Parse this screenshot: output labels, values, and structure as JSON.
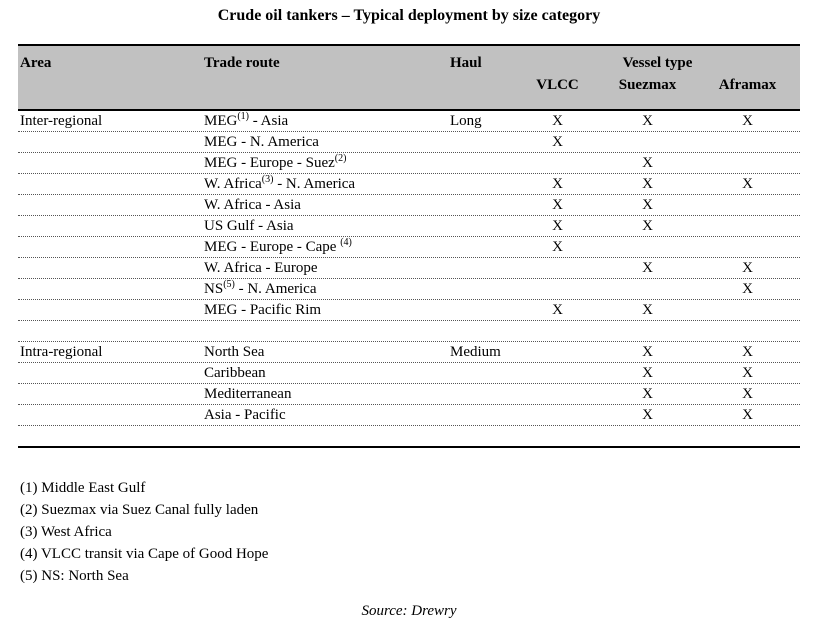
{
  "title": "Crude oil tankers – Typical deployment by size category",
  "colors": {
    "header_background": "#c1c1c1",
    "rule": "#000000",
    "dotted_rule": "#555555"
  },
  "table": {
    "headers": {
      "area": "Area",
      "trade_route": "Trade route",
      "haul": "Haul",
      "vessel_type": "Vessel type",
      "vlcc": "VLCC",
      "suezmax": "Suezmax",
      "aframax": "Aframax"
    },
    "mark": "X",
    "rows": [
      {
        "area": "Inter-regional",
        "route_pre": "MEG",
        "route_sup": "(1)",
        "route_post": " - Asia",
        "haul": "Long",
        "vlcc": true,
        "suezmax": true,
        "aframax": true
      },
      {
        "area": "",
        "route_pre": "MEG - N. America",
        "route_sup": "",
        "route_post": "",
        "haul": "",
        "vlcc": true,
        "suezmax": false,
        "aframax": false
      },
      {
        "area": "",
        "route_pre": "MEG - Europe - Suez",
        "route_sup": "(2)",
        "route_post": "",
        "haul": "",
        "vlcc": false,
        "suezmax": true,
        "aframax": false
      },
      {
        "area": "",
        "route_pre": "W. Africa",
        "route_sup": "(3)",
        "route_post": " - N. America",
        "haul": "",
        "vlcc": true,
        "suezmax": true,
        "aframax": true
      },
      {
        "area": "",
        "route_pre": "W. Africa - Asia",
        "route_sup": "",
        "route_post": "",
        "haul": "",
        "vlcc": true,
        "suezmax": true,
        "aframax": false
      },
      {
        "area": "",
        "route_pre": "US Gulf - Asia",
        "route_sup": "",
        "route_post": "",
        "haul": "",
        "vlcc": true,
        "suezmax": true,
        "aframax": false
      },
      {
        "area": "",
        "route_pre": "MEG - Europe - Cape ",
        "route_sup": "(4)",
        "route_post": "",
        "haul": "",
        "vlcc": true,
        "suezmax": false,
        "aframax": false
      },
      {
        "area": "",
        "route_pre": "W. Africa - Europe",
        "route_sup": "",
        "route_post": "",
        "haul": "",
        "vlcc": false,
        "suezmax": true,
        "aframax": true
      },
      {
        "area": "",
        "route_pre": "NS",
        "route_sup": "(5)",
        "route_post": " - N. America",
        "haul": "",
        "vlcc": false,
        "suezmax": false,
        "aframax": true
      },
      {
        "area": "",
        "route_pre": "MEG - Pacific Rim",
        "route_sup": "",
        "route_post": "",
        "haul": "",
        "vlcc": true,
        "suezmax": true,
        "aframax": false
      },
      {
        "area": "Intra-regional",
        "route_pre": "North Sea",
        "route_sup": "",
        "route_post": "",
        "haul": "Medium",
        "vlcc": false,
        "suezmax": true,
        "aframax": true
      },
      {
        "area": "",
        "route_pre": "Caribbean",
        "route_sup": "",
        "route_post": "",
        "haul": "",
        "vlcc": false,
        "suezmax": true,
        "aframax": true
      },
      {
        "area": "",
        "route_pre": "Mediterranean",
        "route_sup": "",
        "route_post": "",
        "haul": "",
        "vlcc": false,
        "suezmax": true,
        "aframax": true
      },
      {
        "area": "",
        "route_pre": "Asia - Pacific",
        "route_sup": "",
        "route_post": "",
        "haul": "",
        "vlcc": false,
        "suezmax": true,
        "aframax": true
      }
    ]
  },
  "footnotes": [
    "(1) Middle East Gulf",
    "(2) Suezmax via Suez Canal fully laden",
    "(3) West Africa",
    "(4) VLCC transit via Cape of Good Hope",
    "(5) NS: North Sea"
  ],
  "source": "Source: Drewry"
}
